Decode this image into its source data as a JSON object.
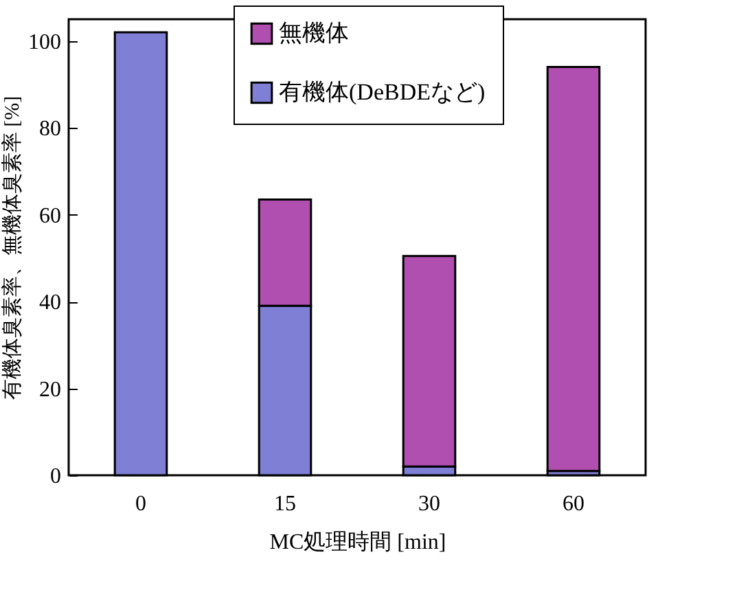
{
  "chart_data": {
    "type": "bar",
    "stacked": true,
    "xlabel": "MC処理時間 [min]",
    "ylabel": "有機体臭素率、無機体臭素率 [%]",
    "categories": [
      "0",
      "15",
      "30",
      "60"
    ],
    "series": [
      {
        "name": "有機体(DeBDEなど)",
        "color": "#7f7fd6",
        "values": [
          102,
          39,
          2,
          1
        ]
      },
      {
        "name": "無機体",
        "color": "#b04fb0",
        "values": [
          0,
          24.5,
          48.5,
          93
        ]
      }
    ],
    "ylim": [
      0,
      105
    ],
    "yticks": [
      0,
      20,
      40,
      60,
      80,
      100
    ],
    "grid": false,
    "legend": "top"
  }
}
